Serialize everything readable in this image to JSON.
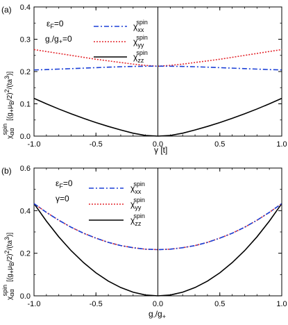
{
  "chart_data": [
    {
      "type": "line",
      "panel_tag": "(a)",
      "xlabel": "γ [t]",
      "ylabel": "χ^spin_αα [(g₊μB/2)²/(ta³)]",
      "xlim": [
        -1.0,
        1.0
      ],
      "ylim": [
        0.0,
        0.4
      ],
      "xticks": [
        -1.0,
        -0.5,
        0.0,
        0.5,
        1.0
      ],
      "xtick_labels": [
        "-1.0",
        "-0.5",
        "0.0",
        "0.5",
        "1.0"
      ],
      "yticks": [
        0.0,
        0.1,
        0.2,
        0.3,
        0.4
      ],
      "ytick_labels": [
        "0.0",
        "0.1",
        "0.2",
        "0.3",
        "0.4"
      ],
      "annotations": [
        "εF=0",
        "g-/g+=0"
      ],
      "legend_position": "top-center",
      "x": [
        -1.0,
        -0.9,
        -0.8,
        -0.7,
        -0.6,
        -0.5,
        -0.4,
        -0.3,
        -0.2,
        -0.1,
        0.0,
        0.1,
        0.2,
        0.3,
        0.4,
        0.5,
        0.6,
        0.7,
        0.8,
        0.9,
        1.0
      ],
      "series": [
        {
          "name": "χ^spin_xx",
          "color": "#1a3fd6",
          "dash": "dashdot",
          "values": [
            0.205,
            0.206,
            0.2075,
            0.209,
            0.2105,
            0.212,
            0.2135,
            0.2148,
            0.2158,
            0.2164,
            0.2165,
            0.2164,
            0.2158,
            0.2148,
            0.2135,
            0.212,
            0.2105,
            0.209,
            0.2075,
            0.206,
            0.205
          ]
        },
        {
          "name": "χ^spin_yy",
          "color": "#e3262c",
          "dash": "dotted",
          "values": [
            0.268,
            0.262,
            0.256,
            0.25,
            0.244,
            0.238,
            0.233,
            0.228,
            0.223,
            0.219,
            0.2165,
            0.219,
            0.223,
            0.228,
            0.233,
            0.238,
            0.244,
            0.25,
            0.256,
            0.262,
            0.268
          ]
        },
        {
          "name": "χ^spin_zz",
          "color": "#000000",
          "dash": "solid",
          "values": [
            0.117,
            0.1,
            0.084,
            0.069,
            0.055,
            0.042,
            0.03,
            0.019,
            0.009,
            0.002,
            0.0,
            0.002,
            0.009,
            0.019,
            0.03,
            0.042,
            0.055,
            0.069,
            0.084,
            0.1,
            0.117
          ]
        }
      ]
    },
    {
      "type": "line",
      "panel_tag": "(b)",
      "xlabel": "g-/g+",
      "ylabel": "χ^spin_αα [(g₊μB/2)²/(ta³)]",
      "xlim": [
        -1.0,
        1.0
      ],
      "ylim": [
        0.0,
        0.6
      ],
      "xticks": [
        -1.0,
        -0.5,
        0.0,
        0.5,
        1.0
      ],
      "xtick_labels": [
        "-1.0",
        "-0.5",
        "0.0",
        "0.5",
        "1.0"
      ],
      "yticks": [
        0.0,
        0.2,
        0.4,
        0.6
      ],
      "ytick_labels": [
        "0.0",
        "0.2",
        "0.4",
        "0.6"
      ],
      "annotations": [
        "εF=0",
        "γ=0"
      ],
      "legend_position": "top-center",
      "x": [
        -1.0,
        -0.9,
        -0.8,
        -0.7,
        -0.6,
        -0.5,
        -0.4,
        -0.3,
        -0.2,
        -0.1,
        0.0,
        0.1,
        0.2,
        0.3,
        0.4,
        0.5,
        0.6,
        0.7,
        0.8,
        0.9,
        1.0
      ],
      "series": [
        {
          "name": "χ^spin_xx",
          "color": "#1a3fd6",
          "dash": "dashdot",
          "values": [
            0.433,
            0.392,
            0.355,
            0.322,
            0.294,
            0.271,
            0.251,
            0.236,
            0.226,
            0.219,
            0.217,
            0.219,
            0.226,
            0.236,
            0.251,
            0.271,
            0.294,
            0.322,
            0.355,
            0.392,
            0.433
          ]
        },
        {
          "name": "χ^spin_yy",
          "color": "#e3262c",
          "dash": "dotted",
          "values": [
            0.433,
            0.392,
            0.355,
            0.322,
            0.294,
            0.271,
            0.251,
            0.236,
            0.226,
            0.219,
            0.217,
            0.219,
            0.226,
            0.236,
            0.251,
            0.271,
            0.294,
            0.322,
            0.355,
            0.392,
            0.433
          ]
        },
        {
          "name": "χ^spin_zz",
          "color": "#000000",
          "dash": "solid",
          "values": [
            0.433,
            0.351,
            0.277,
            0.212,
            0.156,
            0.108,
            0.069,
            0.039,
            0.017,
            0.004,
            0.0,
            0.004,
            0.017,
            0.039,
            0.069,
            0.108,
            0.156,
            0.212,
            0.277,
            0.351,
            0.433
          ]
        }
      ]
    }
  ]
}
